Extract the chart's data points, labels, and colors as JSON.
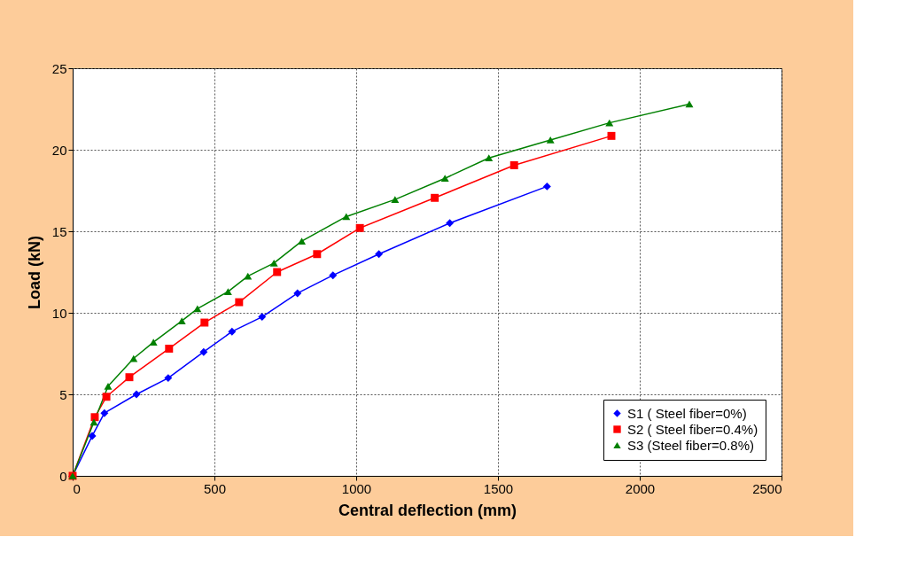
{
  "chart_data": {
    "type": "line",
    "xlabel": "Central deflection (mm)",
    "ylabel": "Load (kN)",
    "xlim": [
      0,
      2500
    ],
    "xticks": [
      0,
      500,
      1000,
      1500,
      2000,
      2500
    ],
    "ylim": [
      0,
      25
    ],
    "yticks": [
      0,
      5,
      10,
      15,
      20,
      25
    ],
    "grid": true,
    "legend": "bottom right",
    "line_style": "solid",
    "series": [
      {
        "name": "S1 ( Steel fiber=0%)",
        "color": "#0000ff",
        "marker": "diamond",
        "x": [
          0,
          69,
          112,
          225,
          337,
          462,
          562,
          668,
          793,
          918,
          1080,
          1330,
          1673
        ],
        "values": [
          0,
          2.45,
          3.85,
          5.0,
          6.0,
          7.6,
          8.85,
          9.75,
          11.2,
          12.3,
          13.6,
          15.5,
          17.75
        ]
      },
      {
        "name": "S2 ( Steel fiber=0.4%)",
        "color": "#ff0000",
        "marker": "square",
        "x": [
          0,
          78,
          119,
          200,
          340,
          465,
          587,
          721,
          862,
          1013,
          1277,
          1557,
          1900
        ],
        "values": [
          0,
          3.6,
          4.85,
          6.05,
          7.8,
          9.4,
          10.65,
          12.5,
          13.6,
          15.2,
          17.05,
          19.05,
          20.85
        ]
      },
      {
        "name": "S3 (Steel fiber=0.8%)",
        "color": "#008000",
        "marker": "triangle",
        "x": [
          0,
          75,
          125,
          215,
          285,
          385,
          440,
          548,
          618,
          710,
          808,
          965,
          1137,
          1313,
          1468,
          1685,
          1893,
          2175
        ],
        "values": [
          0,
          3.3,
          5.5,
          7.2,
          8.2,
          9.5,
          10.25,
          11.3,
          12.25,
          13.05,
          14.4,
          15.9,
          16.95,
          18.25,
          19.5,
          20.6,
          21.65,
          22.8
        ]
      }
    ]
  }
}
